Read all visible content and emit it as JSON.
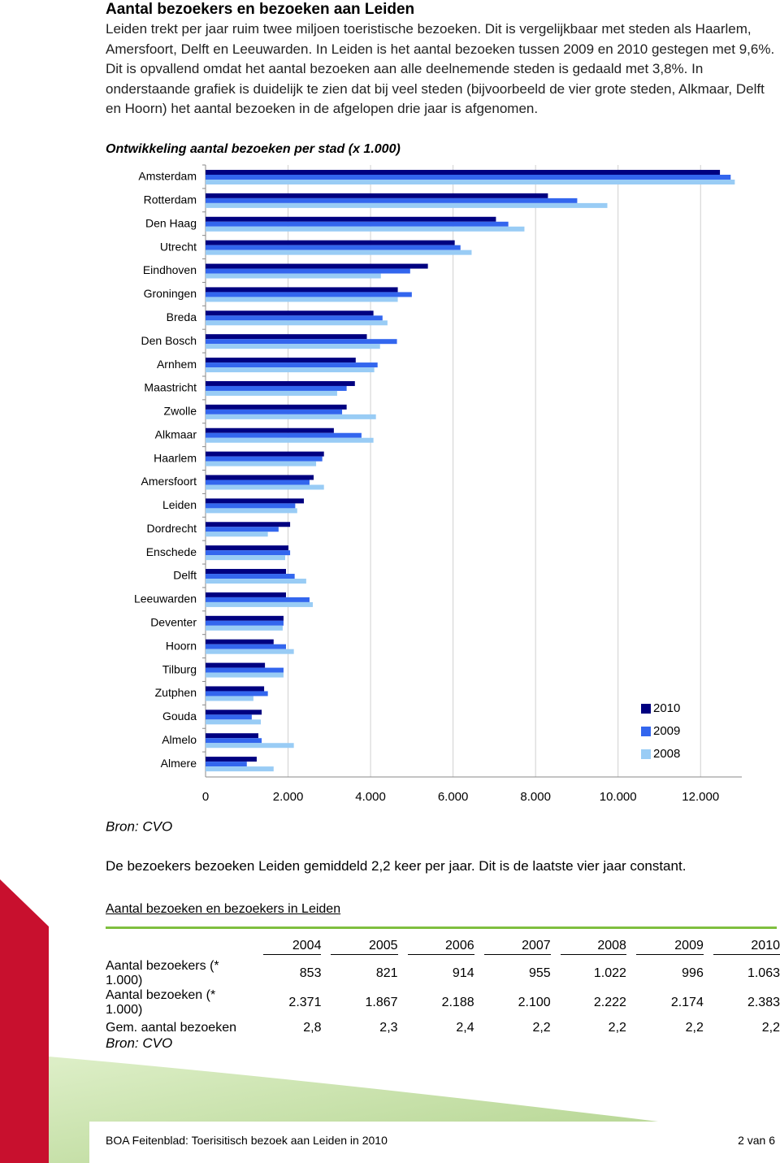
{
  "heading": "Aantal bezoekers en bezoeken aan Leiden",
  "paragraph": "Leiden trekt per jaar ruim twee miljoen toeristische bezoeken. Dit is vergelijkbaar met steden als Haarlem, Amersfoort, Delft en Leeuwarden. In Leiden is het aantal bezoeken tussen 2009 en 2010 gestegen met 9,6%. Dit is opvallend omdat het aantal bezoeken aan alle deelnemende steden is gedaald met 3,8%. In onderstaande grafiek is duidelijk te zien dat bij veel steden (bijvoorbeeld de vier grote steden, Alkmaar, Delft en Hoorn) het aantal bezoeken in de afgelopen drie jaar is afgenomen.",
  "chart_data": {
    "type": "bar",
    "orientation": "horizontal",
    "title": "Ontwikkeling aantal bezoeken per stad (x 1.000)",
    "categories": [
      "Amsterdam",
      "Rotterdam",
      "Den Haag",
      "Utrecht",
      "Eindhoven",
      "Groningen",
      "Breda",
      "Den Bosch",
      "Arnhem",
      "Maastricht",
      "Zwolle",
      "Alkmaar",
      "Haarlem",
      "Amersfoort",
      "Leiden",
      "Dordrecht",
      "Enschede",
      "Delft",
      "Leeuwarden",
      "Deventer",
      "Hoorn",
      "Tilburg",
      "Zutphen",
      "Gouda",
      "Almelo",
      "Almere"
    ],
    "series": [
      {
        "name": "2010",
        "color": "#000080",
        "values": [
          12470,
          8300,
          7040,
          6040,
          5390,
          4660,
          4070,
          3910,
          3640,
          3620,
          3420,
          3110,
          2870,
          2620,
          2383,
          2050,
          2010,
          1950,
          1950,
          1890,
          1650,
          1440,
          1420,
          1360,
          1280,
          1240
        ]
      },
      {
        "name": "2009",
        "color": "#3366ee",
        "values": [
          12730,
          9010,
          7340,
          6180,
          4960,
          5000,
          4290,
          4640,
          4170,
          3420,
          3310,
          3780,
          2830,
          2520,
          2174,
          1770,
          2050,
          2160,
          2520,
          1890,
          1950,
          1890,
          1510,
          1120,
          1360,
          1000
        ]
      },
      {
        "name": "2008",
        "color": "#99ccf5",
        "values": [
          12830,
          9740,
          7730,
          6450,
          4250,
          4660,
          4410,
          4230,
          4090,
          3190,
          4130,
          4070,
          2680,
          2870,
          2222,
          1510,
          1930,
          2440,
          2600,
          1870,
          2140,
          1890,
          1160,
          1340,
          2140,
          1650
        ]
      }
    ],
    "xlim": [
      0,
      13000
    ],
    "xticks": [
      0,
      {
        "value": 2000,
        "label": "2.000"
      },
      {
        "value": 4000,
        "label": "4.000"
      },
      {
        "value": 6000,
        "label": "6.000"
      },
      {
        "value": 8000,
        "label": "8.000"
      },
      {
        "value": 10000,
        "label": "10.000"
      },
      {
        "value": 12000,
        "label": "12.000"
      }
    ],
    "grid": true,
    "legend": "bottom-right"
  },
  "chart_source": "Bron: CVO",
  "note": "De bezoekers bezoeken Leiden gemiddeld 2,2 keer per jaar. Dit is de laatste vier jaar constant.",
  "table": {
    "title": "Aantal bezoeken en bezoekers in Leiden",
    "columns": [
      "2004",
      "2005",
      "2006",
      "2007",
      "2008",
      "2009",
      "2010"
    ],
    "rows": [
      [
        "Aantal bezoekers (* 1.000)",
        "853",
        "821",
        "914",
        "955",
        "1.022",
        "996",
        "1.063"
      ],
      [
        "Aantal bezoeken (* 1.000)",
        "2.371",
        "1.867",
        "2.188",
        "2.100",
        "2.222",
        "2.174",
        "2.383"
      ],
      [
        "Gem. aantal bezoeken",
        "2,8",
        "2,3",
        "2,4",
        "2,2",
        "2,2",
        "2,2",
        "2,2"
      ]
    ]
  },
  "table_source": "Bron: CVO",
  "footer": {
    "left": "BOA Feitenblad: Toerisitisch bezoek aan Leiden in 2010",
    "right": "2 van 6"
  }
}
